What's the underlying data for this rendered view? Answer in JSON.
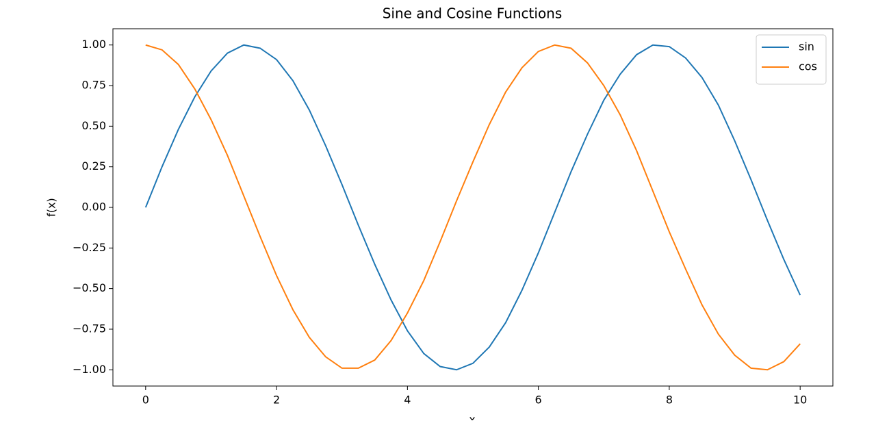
{
  "chart_data": {
    "type": "line",
    "title": "Sine and Cosine Functions",
    "x_label": "x",
    "y_label": "f(x)",
    "x": [
      0,
      0.25,
      0.5,
      0.75,
      1,
      1.25,
      1.5,
      1.75,
      2,
      2.25,
      2.5,
      2.75,
      3,
      3.25,
      3.5,
      3.75,
      4,
      4.25,
      4.5,
      4.75,
      5,
      5.25,
      5.5,
      5.75,
      6,
      6.25,
      6.5,
      6.75,
      7,
      7.25,
      7.5,
      7.75,
      8,
      8.25,
      8.5,
      8.75,
      9,
      9.25,
      9.5,
      9.75,
      10
    ],
    "series": [
      {
        "name": "sin",
        "color": "#1f77b4",
        "values": [
          0,
          0.25,
          0.48,
          0.68,
          0.84,
          0.95,
          1.0,
          0.98,
          0.91,
          0.78,
          0.6,
          0.38,
          0.14,
          -0.11,
          -0.35,
          -0.57,
          -0.76,
          -0.9,
          -0.98,
          -1.0,
          -0.96,
          -0.86,
          -0.71,
          -0.51,
          -0.28,
          -0.03,
          0.22,
          0.45,
          0.66,
          0.82,
          0.94,
          1.0,
          0.99,
          0.92,
          0.8,
          0.63,
          0.41,
          0.17,
          -0.08,
          -0.32,
          -0.54
        ]
      },
      {
        "name": "cos",
        "color": "#ff7f0e",
        "values": [
          1.0,
          0.97,
          0.88,
          0.73,
          0.54,
          0.32,
          0.07,
          -0.18,
          -0.42,
          -0.63,
          -0.8,
          -0.92,
          -0.99,
          -0.99,
          -0.94,
          -0.82,
          -0.65,
          -0.45,
          -0.21,
          0.04,
          0.28,
          0.51,
          0.71,
          0.86,
          0.96,
          1.0,
          0.98,
          0.89,
          0.75,
          0.57,
          0.35,
          0.1,
          -0.15,
          -0.38,
          -0.6,
          -0.78,
          -0.91,
          -0.99,
          -1.0,
          -0.95,
          -0.84
        ]
      }
    ],
    "xlim": [
      -0.5,
      10.5
    ],
    "xticks": [
      0,
      2,
      4,
      6,
      8,
      10
    ],
    "ylim": [
      -1.1,
      1.1
    ],
    "yticks": [
      {
        "value": -1,
        "label": "−1.00"
      },
      {
        "value": -0.75,
        "label": "−0.75"
      },
      {
        "value": -0.5,
        "label": "−0.50"
      },
      {
        "value": -0.25,
        "label": "−0.25"
      },
      {
        "value": 0,
        "label": "0.00"
      },
      {
        "value": 0.25,
        "label": "0.25"
      },
      {
        "value": 0.5,
        "label": "0.50"
      },
      {
        "value": 0.75,
        "label": "0.75"
      },
      {
        "value": 1,
        "label": "1.00"
      }
    ],
    "legend": "upper right",
    "grid": false
  }
}
